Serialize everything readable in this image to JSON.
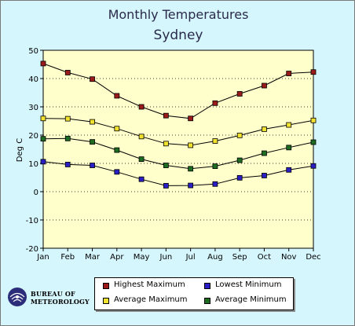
{
  "chart_data": {
    "type": "line",
    "title": "Monthly Temperatures",
    "subtitle": "Sydney",
    "ylabel": "Deg C",
    "xlabel": "",
    "ylim": [
      -20,
      50
    ],
    "yticks": [
      50,
      40,
      30,
      20,
      10,
      0,
      -10,
      -20
    ],
    "categories": [
      "Jan",
      "Feb",
      "Mar",
      "Apr",
      "May",
      "Jun",
      "Jul",
      "Aug",
      "Sep",
      "Oct",
      "Nov",
      "Dec"
    ],
    "grid": "horizontal dotted",
    "series": [
      {
        "name": "Highest Maximum",
        "color": "#9b1b1b",
        "values": [
          45.3,
          42.1,
          39.8,
          33.9,
          30.0,
          26.9,
          25.9,
          31.3,
          34.6,
          37.5,
          41.8,
          42.3
        ]
      },
      {
        "name": "Average Maximum",
        "color": "#f2e230",
        "values": [
          25.9,
          25.8,
          24.7,
          22.3,
          19.5,
          17.0,
          16.4,
          17.9,
          19.9,
          22.1,
          23.6,
          25.2
        ]
      },
      {
        "name": "Average Minimum",
        "color": "#1e6b22",
        "values": [
          18.7,
          18.8,
          17.6,
          14.7,
          11.5,
          9.3,
          8.1,
          9.0,
          11.1,
          13.6,
          15.6,
          17.5
        ]
      },
      {
        "name": "Lowest Minimum",
        "color": "#2a1fc4",
        "values": [
          10.6,
          9.6,
          9.3,
          7.0,
          4.4,
          2.1,
          2.2,
          2.7,
          4.9,
          5.7,
          7.7,
          9.1
        ]
      }
    ]
  },
  "legend": {
    "items": [
      {
        "label": "Highest Maximum",
        "color": "#9b1b1b"
      },
      {
        "label": "Lowest Minimum",
        "color": "#2a1fc4"
      },
      {
        "label": "Average Maximum",
        "color": "#f2e230"
      },
      {
        "label": "Average Minimum",
        "color": "#1e6b22"
      }
    ]
  },
  "logo": {
    "line1": "BUREAU OF",
    "line2": "METEOROLOGY"
  }
}
